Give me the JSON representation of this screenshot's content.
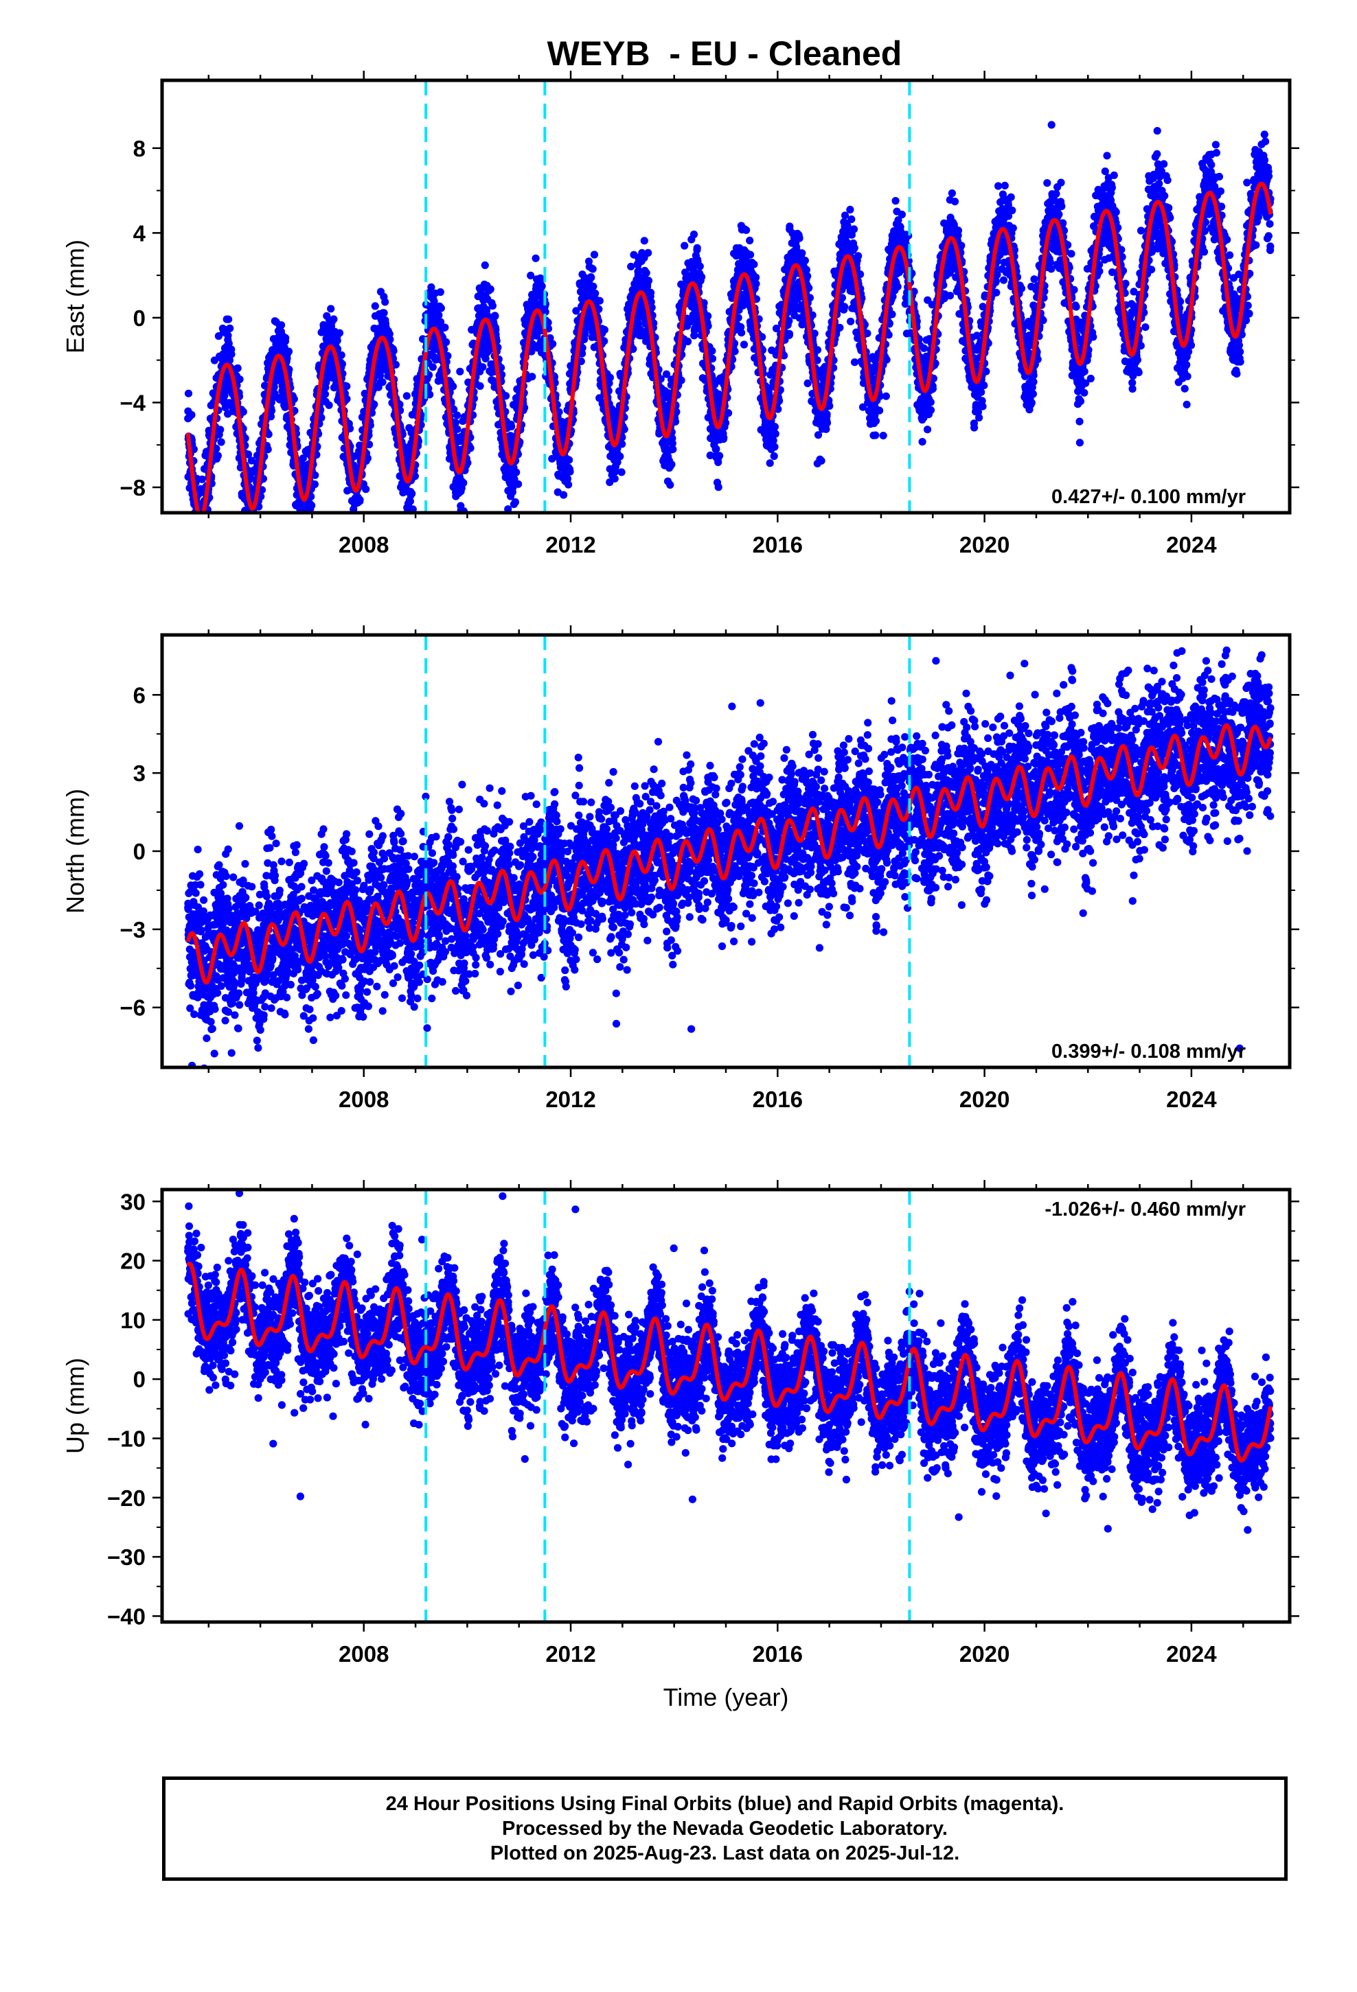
{
  "title": "WEYB  - EU - Cleaned",
  "colors": {
    "points": "#0000ff",
    "model": "#ff0000",
    "steps": "#00e5ff",
    "frame": "#000000"
  },
  "footer": {
    "line1": "24 Hour Positions Using Final Orbits (blue) and Rapid Orbits (magenta).",
    "line2": "Processed by the Nevada Geodetic Laboratory.",
    "line3": "Plotted on 2025-Aug-23. Last data on 2025-Jul-12."
  },
  "chart_data": [
    {
      "type": "scatter",
      "panel": "east",
      "ylabel": "East (mm)",
      "xlabel": "",
      "xlim": [
        2004.1,
        2025.9
      ],
      "ylim": [
        -9.2,
        11.2
      ],
      "x_ticks": [
        2008,
        2012,
        2016,
        2020,
        2024
      ],
      "y_ticks": [
        -8,
        -4,
        0,
        4,
        8
      ],
      "rate_label": "0.427+/- 0.100 mm/yr",
      "rate_position": "bottom-right",
      "step_lines": [
        2009.2,
        2011.5,
        2018.55
      ],
      "data_start": 2004.6,
      "data_end": 2025.53,
      "model": {
        "intercept_at_2015": -1.3,
        "trend_mm_per_yr": 0.427,
        "annual_amplitude": 3.5,
        "annual_phase_year": 0.35,
        "semiannual_amplitude": 0.3,
        "semiannual_phase_year": 0.1,
        "steps": []
      },
      "scatter_sd": 1.0
    },
    {
      "type": "scatter",
      "panel": "north",
      "ylabel": "North (mm)",
      "xlabel": "",
      "xlim": [
        2004.1,
        2025.9
      ],
      "ylim": [
        -8.3,
        8.3
      ],
      "x_ticks": [
        2008,
        2012,
        2016,
        2020,
        2024
      ],
      "y_ticks": [
        -6,
        -3,
        0,
        3,
        6
      ],
      "rate_label": "0.399+/- 0.108 mm/yr",
      "rate_position": "bottom-right",
      "step_lines": [
        2009.2,
        2011.5,
        2018.55
      ],
      "data_start": 2004.6,
      "data_end": 2025.53,
      "model": {
        "intercept_at_2015": 0.1,
        "trend_mm_per_yr": 0.399,
        "annual_amplitude": 0.45,
        "annual_phase_year": 0.5,
        "semiannual_amplitude": 0.7,
        "semiannual_phase_year": 0.2,
        "steps": []
      },
      "scatter_sd": 1.3
    },
    {
      "type": "scatter",
      "panel": "up",
      "ylabel": "Up (mm)",
      "xlabel": "Time (year)",
      "xlim": [
        2004.1,
        2025.9
      ],
      "ylim": [
        -41,
        32
      ],
      "x_ticks": [
        2008,
        2012,
        2016,
        2020,
        2024
      ],
      "y_ticks": [
        -40,
        -30,
        -20,
        -10,
        0,
        10,
        20,
        30
      ],
      "rate_label": "-1.026+/- 0.460 mm/yr",
      "rate_position": "top-right",
      "step_lines": [
        2009.2,
        2011.5,
        2018.55
      ],
      "data_start": 2004.6,
      "data_end": 2025.53,
      "model": {
        "intercept_at_2015": 1.5,
        "trend_mm_per_yr": -1.026,
        "annual_amplitude": 5.0,
        "annual_phase_year": 0.6,
        "semiannual_amplitude": 2.5,
        "semiannual_phase_year": 0.15,
        "steps": []
      },
      "scatter_sd": 4.2
    }
  ]
}
